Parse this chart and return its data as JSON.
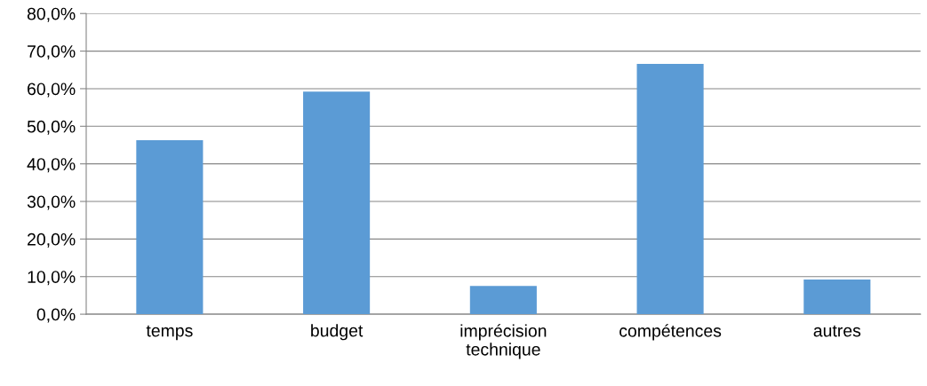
{
  "chart_data": {
    "type": "bar",
    "categories": [
      "temps",
      "budget",
      "imprécision\ntechnique",
      "compétences",
      "autres"
    ],
    "values": [
      46.3,
      59.2,
      7.5,
      66.6,
      9.2
    ],
    "color": "#5b9bd5",
    "ylim": [
      0,
      80
    ],
    "yticks": [
      {
        "value": 0,
        "label": "0,0%"
      },
      {
        "value": 10,
        "label": "10,0%"
      },
      {
        "value": 20,
        "label": "20,0%"
      },
      {
        "value": 30,
        "label": "30,0%"
      },
      {
        "value": 40,
        "label": "40,0%"
      },
      {
        "value": 50,
        "label": "50,0%"
      },
      {
        "value": 60,
        "label": "60,0%"
      },
      {
        "value": 70,
        "label": "70,0%"
      },
      {
        "value": 80,
        "label": "80,0%"
      }
    ],
    "grid": "y",
    "legend": false
  }
}
